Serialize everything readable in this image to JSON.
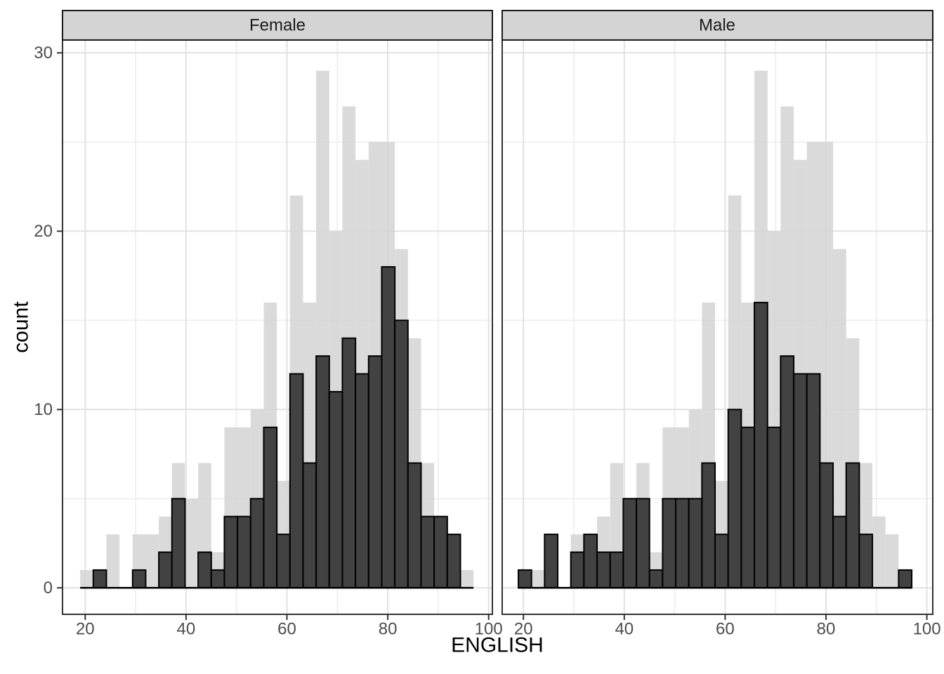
{
  "chart_data": {
    "type": "bar",
    "subtype": "faceted_histogram_with_background_total",
    "facets": [
      "Female",
      "Male"
    ],
    "xlabel": "ENGLISH",
    "ylabel": "count",
    "x_ticks": [
      20,
      40,
      60,
      80,
      100
    ],
    "x_minor_ticks": [
      30,
      50,
      70,
      90
    ],
    "y_ticks": [
      0,
      10,
      20,
      30
    ],
    "y_minor_ticks": [
      5,
      15,
      25
    ],
    "xlim": [
      15.1,
      100.9
    ],
    "ylim": [
      0,
      30.7
    ],
    "bin_start": 19,
    "bin_width": 2.6,
    "series": [
      {
        "name": "total_background",
        "values": [
          1,
          1,
          3,
          0,
          3,
          3,
          4,
          7,
          5,
          7,
          2,
          9,
          9,
          10,
          16,
          6,
          22,
          16,
          29,
          20,
          27,
          24,
          25,
          25,
          19,
          14,
          7,
          4,
          3,
          1
        ]
      },
      {
        "name": "Female",
        "values": [
          0,
          1,
          0,
          0,
          1,
          0,
          2,
          5,
          0,
          2,
          1,
          4,
          4,
          5,
          9,
          3,
          12,
          7,
          13,
          11,
          14,
          12,
          13,
          18,
          15,
          7,
          4,
          4,
          3,
          0
        ]
      },
      {
        "name": "Male",
        "values": [
          1,
          0,
          3,
          0,
          2,
          3,
          2,
          2,
          5,
          5,
          1,
          5,
          5,
          5,
          7,
          3,
          10,
          9,
          16,
          9,
          13,
          12,
          12,
          7,
          4,
          7,
          3,
          0,
          0,
          1
        ]
      }
    ],
    "grid": true,
    "legend": "none",
    "colors": {
      "foreground_bar_fill": "#424242",
      "foreground_bar_stroke": "#000000",
      "background_bar_fill": "#d4d4d4",
      "panel_background": "#ffffff",
      "panel_border": "#333333",
      "grid_major": "#e2e2e2",
      "grid_minor": "#f0f0f0",
      "strip_background": "#d4d4d4",
      "strip_border": "#1a1a1a",
      "strip_text": "#1a1a1a",
      "tick_label_color": "#4d4d4d",
      "axis_title_color": "#000000"
    }
  }
}
